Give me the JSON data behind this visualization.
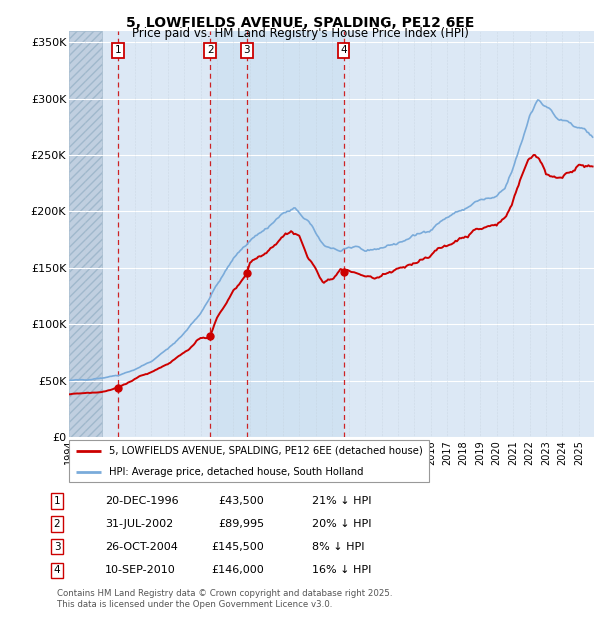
{
  "title": "5, LOWFIELDS AVENUE, SPALDING, PE12 6EE",
  "subtitle": "Price paid vs. HM Land Registry's House Price Index (HPI)",
  "ylim": [
    0,
    360000
  ],
  "yticks": [
    0,
    50000,
    100000,
    150000,
    200000,
    250000,
    300000,
    350000
  ],
  "ytick_labels": [
    "£0",
    "£50K",
    "£100K",
    "£150K",
    "£200K",
    "£250K",
    "£300K",
    "£350K"
  ],
  "xlim_start": 1994.0,
  "xlim_end": 2025.92,
  "hatch_end": 1996.0,
  "shade_start": 2002.58,
  "shade_end": 2010.69,
  "background_color": "#ffffff",
  "plot_bg_color": "#dce8f5",
  "hatch_color": "#c0cfe0",
  "grid_color": "#ffffff",
  "red_line_color": "#cc0000",
  "blue_line_color": "#7aabda",
  "legend_label_red": "5, LOWFIELDS AVENUE, SPALDING, PE12 6EE (detached house)",
  "legend_label_blue": "HPI: Average price, detached house, South Holland",
  "sale_points": [
    {
      "num": 1,
      "date": "20-DEC-1996",
      "year": 1996.97,
      "price": 43500,
      "pct": "21%",
      "dir": "↓"
    },
    {
      "num": 2,
      "date": "31-JUL-2002",
      "year": 2002.58,
      "price": 89995,
      "pct": "20%",
      "dir": "↓"
    },
    {
      "num": 3,
      "date": "26-OCT-2004",
      "year": 2004.82,
      "price": 145500,
      "pct": "8%",
      "dir": "↓"
    },
    {
      "num": 4,
      "date": "10-SEP-2010",
      "year": 2010.69,
      "price": 146000,
      "pct": "16%",
      "dir": "↓"
    }
  ],
  "footer_line1": "Contains HM Land Registry data © Crown copyright and database right 2025.",
  "footer_line2": "This data is licensed under the Open Government Licence v3.0."
}
